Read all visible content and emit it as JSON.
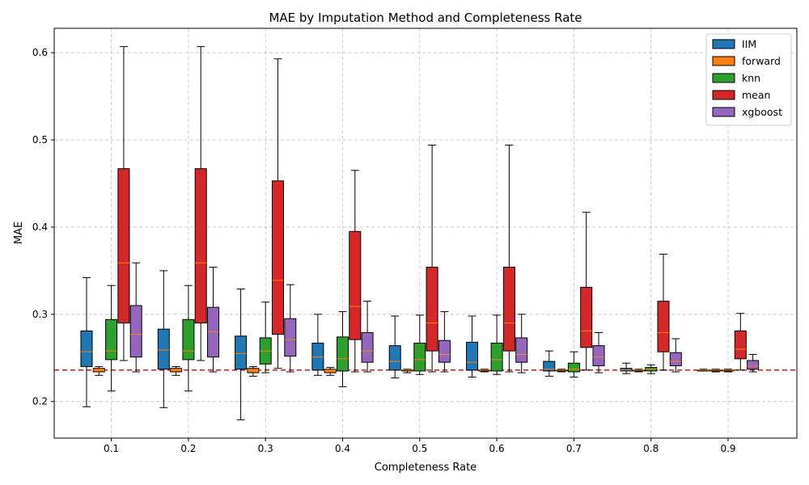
{
  "chart_data": {
    "type": "box",
    "title": "MAE by Imputation Method and Completeness Rate",
    "xlabel": "Completeness Rate",
    "ylabel": "MAE",
    "ylim": [
      0.158,
      0.628
    ],
    "yticks": [
      0.2,
      0.3,
      0.4,
      0.5,
      0.6
    ],
    "categories": [
      "0.1",
      "0.2",
      "0.3",
      "0.4",
      "0.5",
      "0.6",
      "0.7",
      "0.8",
      "0.9"
    ],
    "grid": true,
    "legend_position": "top-right",
    "reference_line": {
      "y": 0.236,
      "color": "#d62728",
      "style": "dashed"
    },
    "median_color": "#ff7f0e",
    "series": [
      {
        "name": "IIM",
        "color": "#1f77b4",
        "boxes": [
          {
            "whislo": 0.194,
            "q1": 0.24,
            "med": 0.257,
            "q3": 0.281,
            "whishi": 0.342
          },
          {
            "whislo": 0.193,
            "q1": 0.237,
            "med": 0.259,
            "q3": 0.283,
            "whishi": 0.35
          },
          {
            "whislo": 0.179,
            "q1": 0.237,
            "med": 0.255,
            "q3": 0.275,
            "whishi": 0.329
          },
          {
            "whislo": 0.23,
            "q1": 0.236,
            "med": 0.251,
            "q3": 0.267,
            "whishi": 0.3
          },
          {
            "whislo": 0.227,
            "q1": 0.236,
            "med": 0.246,
            "q3": 0.264,
            "whishi": 0.298
          },
          {
            "whislo": 0.228,
            "q1": 0.236,
            "med": 0.245,
            "q3": 0.268,
            "whishi": 0.298
          },
          {
            "whislo": 0.229,
            "q1": 0.235,
            "med": 0.237,
            "q3": 0.246,
            "whishi": 0.258
          },
          {
            "whislo": 0.232,
            "q1": 0.235,
            "med": 0.236,
            "q3": 0.238,
            "whishi": 0.244
          },
          {
            "whislo": 0.235,
            "q1": 0.235,
            "med": 0.236,
            "q3": 0.236,
            "whishi": 0.237
          }
        ]
      },
      {
        "name": "forward",
        "color": "#ff7f0e",
        "boxes": [
          {
            "whislo": 0.23,
            "q1": 0.234,
            "med": 0.236,
            "q3": 0.238,
            "whishi": 0.24
          },
          {
            "whislo": 0.23,
            "q1": 0.234,
            "med": 0.236,
            "q3": 0.238,
            "whishi": 0.24
          },
          {
            "whislo": 0.229,
            "q1": 0.233,
            "med": 0.236,
            "q3": 0.238,
            "whishi": 0.24
          },
          {
            "whislo": 0.23,
            "q1": 0.233,
            "med": 0.236,
            "q3": 0.237,
            "whishi": 0.239
          },
          {
            "whislo": 0.233,
            "q1": 0.235,
            "med": 0.236,
            "q3": 0.236,
            "whishi": 0.237
          },
          {
            "whislo": 0.234,
            "q1": 0.235,
            "med": 0.236,
            "q3": 0.236,
            "whishi": 0.237
          },
          {
            "whislo": 0.234,
            "q1": 0.235,
            "med": 0.236,
            "q3": 0.236,
            "whishi": 0.237
          },
          {
            "whislo": 0.234,
            "q1": 0.235,
            "med": 0.236,
            "q3": 0.236,
            "whishi": 0.237
          },
          {
            "whislo": 0.234,
            "q1": 0.235,
            "med": 0.236,
            "q3": 0.236,
            "whishi": 0.237
          }
        ]
      },
      {
        "name": "knn",
        "color": "#2ca02c",
        "boxes": [
          {
            "whislo": 0.212,
            "q1": 0.248,
            "med": 0.258,
            "q3": 0.294,
            "whishi": 0.333
          },
          {
            "whislo": 0.212,
            "q1": 0.248,
            "med": 0.258,
            "q3": 0.294,
            "whishi": 0.333
          },
          {
            "whislo": 0.233,
            "q1": 0.243,
            "med": 0.258,
            "q3": 0.273,
            "whishi": 0.314
          },
          {
            "whislo": 0.217,
            "q1": 0.235,
            "med": 0.249,
            "q3": 0.274,
            "whishi": 0.303
          },
          {
            "whislo": 0.231,
            "q1": 0.235,
            "med": 0.248,
            "q3": 0.267,
            "whishi": 0.299
          },
          {
            "whislo": 0.231,
            "q1": 0.235,
            "med": 0.248,
            "q3": 0.267,
            "whishi": 0.299
          },
          {
            "whislo": 0.228,
            "q1": 0.234,
            "med": 0.237,
            "q3": 0.244,
            "whishi": 0.257
          },
          {
            "whislo": 0.232,
            "q1": 0.235,
            "med": 0.237,
            "q3": 0.239,
            "whishi": 0.242
          },
          {
            "whislo": 0.234,
            "q1": 0.235,
            "med": 0.236,
            "q3": 0.236,
            "whishi": 0.237
          }
        ]
      },
      {
        "name": "mean",
        "color": "#d62728",
        "boxes": [
          {
            "whislo": 0.247,
            "q1": 0.29,
            "med": 0.359,
            "q3": 0.467,
            "whishi": 0.607
          },
          {
            "whislo": 0.247,
            "q1": 0.29,
            "med": 0.359,
            "q3": 0.467,
            "whishi": 0.607
          },
          {
            "whislo": 0.238,
            "q1": 0.277,
            "med": 0.339,
            "q3": 0.453,
            "whishi": 0.593
          },
          {
            "whislo": 0.234,
            "q1": 0.271,
            "med": 0.309,
            "q3": 0.395,
            "whishi": 0.465
          },
          {
            "whislo": 0.234,
            "q1": 0.258,
            "med": 0.29,
            "q3": 0.354,
            "whishi": 0.494
          },
          {
            "whislo": 0.234,
            "q1": 0.258,
            "med": 0.29,
            "q3": 0.354,
            "whishi": 0.494
          },
          {
            "whislo": 0.236,
            "q1": 0.262,
            "med": 0.281,
            "q3": 0.331,
            "whishi": 0.417
          },
          {
            "whislo": 0.236,
            "q1": 0.257,
            "med": 0.279,
            "q3": 0.315,
            "whishi": 0.369
          },
          {
            "whislo": 0.236,
            "q1": 0.249,
            "med": 0.26,
            "q3": 0.281,
            "whishi": 0.301
          }
        ]
      },
      {
        "name": "xgboost",
        "color": "#9467bd",
        "boxes": [
          {
            "whislo": 0.234,
            "q1": 0.251,
            "med": 0.277,
            "q3": 0.31,
            "whishi": 0.359
          },
          {
            "whislo": 0.234,
            "q1": 0.251,
            "med": 0.28,
            "q3": 0.308,
            "whishi": 0.354
          },
          {
            "whislo": 0.234,
            "q1": 0.252,
            "med": 0.271,
            "q3": 0.295,
            "whishi": 0.334
          },
          {
            "whislo": 0.234,
            "q1": 0.245,
            "med": 0.258,
            "q3": 0.279,
            "whishi": 0.315
          },
          {
            "whislo": 0.234,
            "q1": 0.245,
            "med": 0.254,
            "q3": 0.27,
            "whishi": 0.303
          },
          {
            "whislo": 0.233,
            "q1": 0.245,
            "med": 0.254,
            "q3": 0.273,
            "whishi": 0.3
          },
          {
            "whislo": 0.233,
            "q1": 0.241,
            "med": 0.251,
            "q3": 0.264,
            "whishi": 0.279
          },
          {
            "whislo": 0.234,
            "q1": 0.241,
            "med": 0.246,
            "q3": 0.256,
            "whishi": 0.272
          },
          {
            "whislo": 0.234,
            "q1": 0.237,
            "med": 0.241,
            "q3": 0.247,
            "whishi": 0.254
          }
        ]
      }
    ]
  }
}
